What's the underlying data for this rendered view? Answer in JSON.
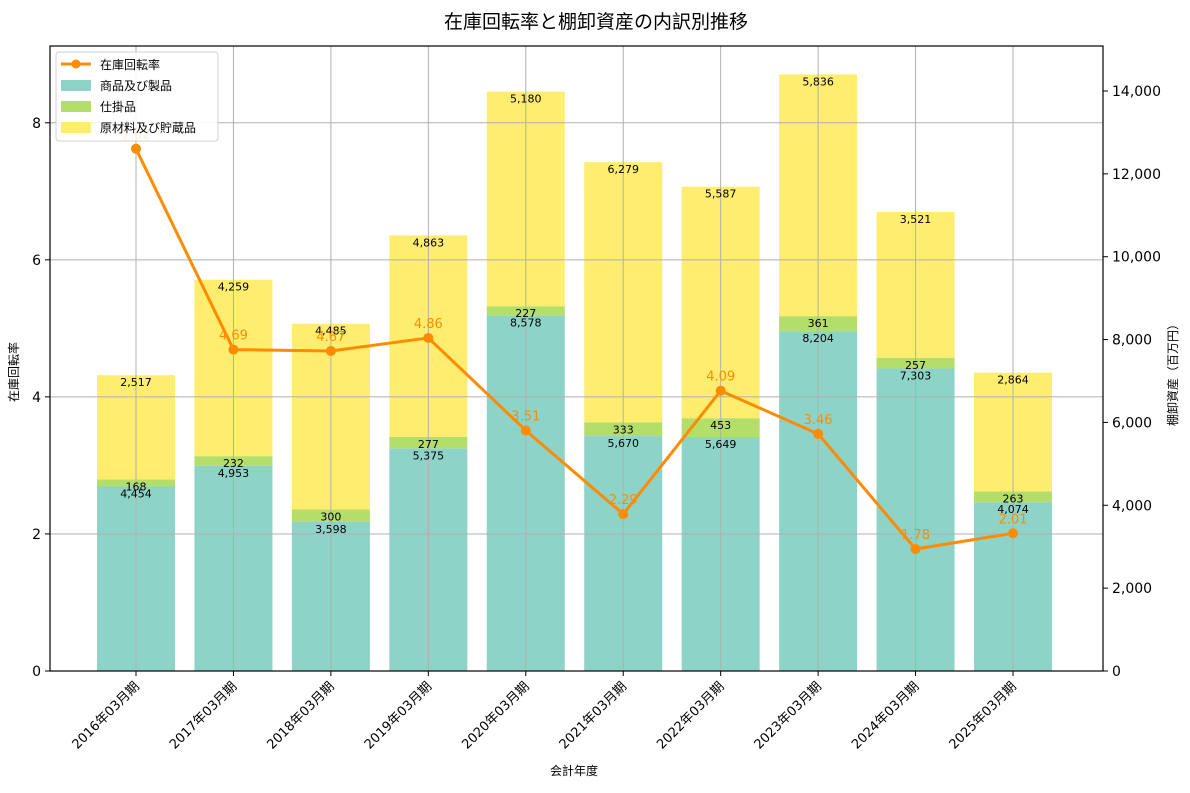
{
  "chart_data": {
    "type": "bar",
    "subtype": "stacked-bar-with-line-overlay",
    "title": "在庫回転率と棚卸資産の内訳別推移",
    "xlabel": "会計年度",
    "ylabel_left": "在庫回転率",
    "ylabel_right": "棚卸資産（百万円）",
    "categories": [
      "2016年03月期",
      "2017年03月期",
      "2018年03月期",
      "2019年03月期",
      "2020年03月期",
      "2021年03月期",
      "2022年03月期",
      "2023年03月期",
      "2024年03月期",
      "2025年03月期"
    ],
    "bar_series": [
      {
        "name": "商品及び製品",
        "color": "#8dd3c7",
        "values": [
          4454,
          4953,
          3598,
          5375,
          8578,
          5670,
          5649,
          8204,
          7303,
          4074
        ]
      },
      {
        "name": "仕掛品",
        "color": "#b3de69",
        "values": [
          168,
          232,
          300,
          277,
          227,
          333,
          453,
          361,
          257,
          263
        ]
      },
      {
        "name": "原材料及び貯蔵品",
        "color": "#ffed6f",
        "values": [
          2517,
          4259,
          4485,
          4863,
          5180,
          6279,
          5587,
          5836,
          3521,
          2864
        ]
      }
    ],
    "line_series": {
      "name": "在庫回転率",
      "color": "#ff8c00",
      "axis": "left",
      "values": [
        7.62,
        4.69,
        4.67,
        4.86,
        3.51,
        2.29,
        4.09,
        3.46,
        1.78,
        2.01
      ]
    },
    "ylim_left": [
      0,
      9.12
    ],
    "ylim_right": [
      0,
      15086
    ],
    "yticks_left": [
      0,
      2,
      4,
      6,
      8
    ],
    "yticks_right": [
      0,
      2000,
      4000,
      6000,
      8000,
      10000,
      12000,
      14000
    ],
    "ytick_labels_right": [
      "0",
      "2,000",
      "4,000",
      "6,000",
      "8,000",
      "10,000",
      "12,000",
      "14,000"
    ],
    "grid": true,
    "legend_position": "upper left",
    "legend": [
      "在庫回転率",
      "商品及び製品",
      "仕掛品",
      "原材料及び貯蔵品"
    ]
  }
}
